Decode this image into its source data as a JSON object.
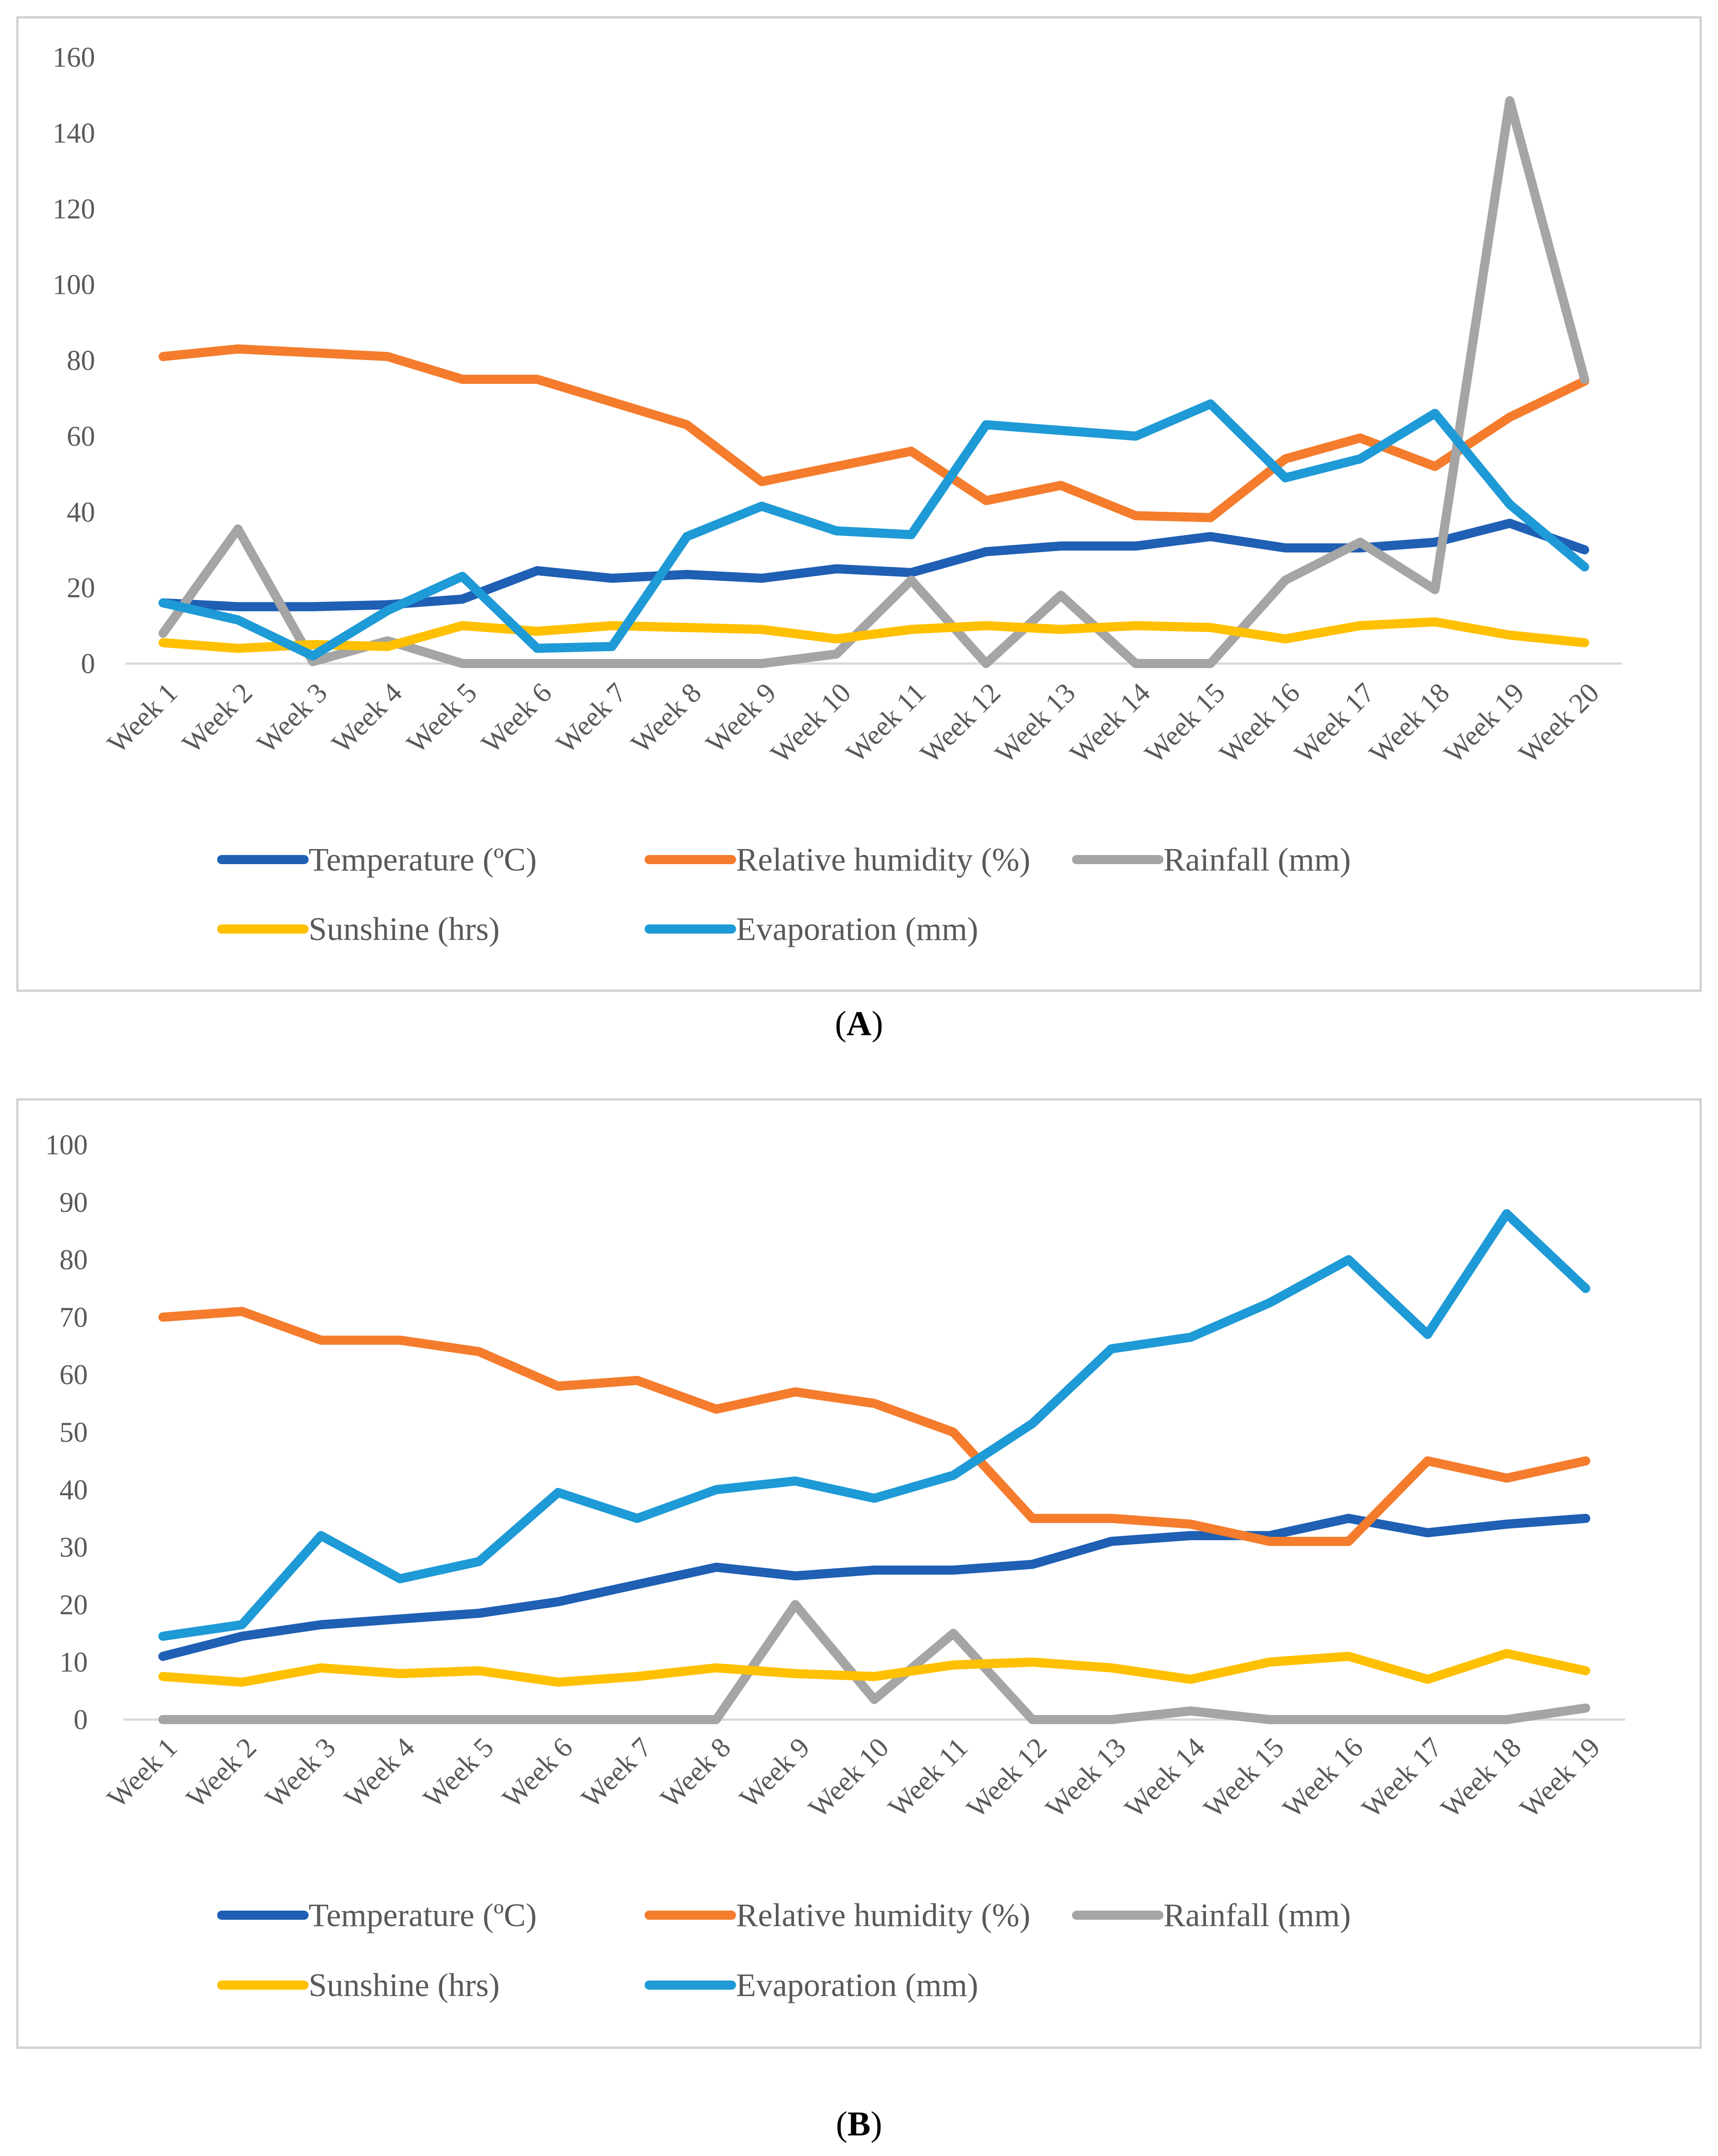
{
  "chart_data": [
    {
      "type": "line",
      "panel_label": "A",
      "caption_open": "(",
      "caption_close": ")",
      "ylim": [
        0,
        160
      ],
      "yticks": [
        "0",
        "20",
        "40",
        "60",
        "80",
        "100",
        "120",
        "140",
        "160"
      ],
      "yticks_values": [
        0,
        20,
        40,
        60,
        80,
        100,
        120,
        140,
        160
      ],
      "categories": [
        "Week 1",
        "Week 2",
        "Week 3",
        "Week 4",
        "Week 5",
        "Week 6",
        "Week 7",
        "Week 8",
        "Week 9",
        "Week 10",
        "Week 11",
        "Week 12",
        "Week 13",
        "Week 14",
        "Week 15",
        "Week 16",
        "Week 17",
        "Week 18",
        "Week 19",
        "Week 20"
      ],
      "series": [
        {
          "name": "Temperature (ºC)",
          "color": "#1f5fb4",
          "values": [
            16,
            15,
            15,
            15.5,
            17,
            24.5,
            22.5,
            23.5,
            22.5,
            25,
            24,
            29.5,
            31,
            31,
            33.5,
            30.5,
            30.5,
            32,
            37,
            30
          ]
        },
        {
          "name": "Relative humidity (%)",
          "color": "#f47c2c",
          "values": [
            81,
            83,
            82,
            81,
            75,
            75,
            69,
            63,
            48,
            52,
            56,
            43,
            47,
            39,
            38.5,
            54,
            59.5,
            52,
            65,
            74.5
          ]
        },
        {
          "name": "Rainfall (mm)",
          "color": "#a5a5a5",
          "values": [
            8,
            35.5,
            0.5,
            6,
            0,
            0,
            0,
            0,
            0,
            2.5,
            22,
            0,
            18,
            0,
            0,
            22,
            32,
            19.5,
            148.5,
            75
          ]
        },
        {
          "name": "Sunshine (hrs)",
          "color": "#ffc000",
          "values": [
            5.5,
            4,
            5,
            4.5,
            10,
            8.5,
            10,
            9.5,
            9,
            6.5,
            9,
            10,
            9,
            10,
            9.5,
            6.5,
            10,
            11,
            7.5,
            5.5
          ]
        },
        {
          "name": "Evaporation (mm)",
          "color": "#1e9ad6",
          "values": [
            16,
            11.5,
            2,
            14,
            23,
            4,
            4.5,
            33.5,
            41.5,
            35,
            34,
            63,
            61.5,
            60,
            68.5,
            49,
            54,
            66,
            42,
            25.5
          ]
        }
      ]
    },
    {
      "type": "line",
      "panel_label": "B",
      "caption_open": "(",
      "caption_close": ")",
      "ylim": [
        0,
        100
      ],
      "yticks": [
        "0",
        "10",
        "20",
        "30",
        "40",
        "50",
        "60",
        "70",
        "80",
        "90",
        "100"
      ],
      "yticks_values": [
        0,
        10,
        20,
        30,
        40,
        50,
        60,
        70,
        80,
        90,
        100
      ],
      "categories": [
        "Week 1",
        "Week 2",
        "Week 3",
        "Week 4",
        "Week 5",
        "Week 6",
        "Week 7",
        "Week 8",
        "Week 9",
        "Week 10",
        "Week 11",
        "Week 12",
        "Week 13",
        "Week 14",
        "Week 15",
        "Week 16",
        "Week 17",
        "Week 18",
        "Week 19"
      ],
      "series": [
        {
          "name": "Temperature (ºC)",
          "color": "#1f5fb4",
          "values": [
            11,
            14.5,
            16.5,
            17.5,
            18.5,
            20.5,
            23.5,
            26.5,
            25,
            26,
            26,
            27,
            31,
            32,
            32,
            35,
            32.5,
            34,
            35
          ]
        },
        {
          "name": "Relative humidity (%)",
          "color": "#f47c2c",
          "values": [
            70,
            71,
            66,
            66,
            64,
            58,
            59,
            54,
            57,
            55,
            50,
            35,
            35,
            34,
            31,
            31,
            45,
            42,
            45
          ]
        },
        {
          "name": "Rainfall (mm)",
          "color": "#a5a5a5",
          "values": [
            0,
            0,
            0,
            0,
            0,
            0,
            0,
            0,
            20,
            3.5,
            15,
            0,
            0,
            1.5,
            0,
            0,
            0,
            0,
            2
          ]
        },
        {
          "name": "Sunshine (hrs)",
          "color": "#ffc000",
          "values": [
            7.5,
            6.5,
            9,
            8,
            8.5,
            6.5,
            7.5,
            9,
            8,
            7.5,
            9.5,
            10,
            9,
            7,
            10,
            11,
            7,
            11.5,
            8.5
          ]
        },
        {
          "name": "Evaporation (mm)",
          "color": "#1e9ad6",
          "values": [
            14.5,
            16.5,
            32,
            24.5,
            27.5,
            39.5,
            35,
            40,
            41.5,
            38.5,
            42.5,
            51.5,
            64.5,
            66.5,
            72.5,
            80,
            67,
            88,
            75
          ]
        }
      ]
    }
  ]
}
